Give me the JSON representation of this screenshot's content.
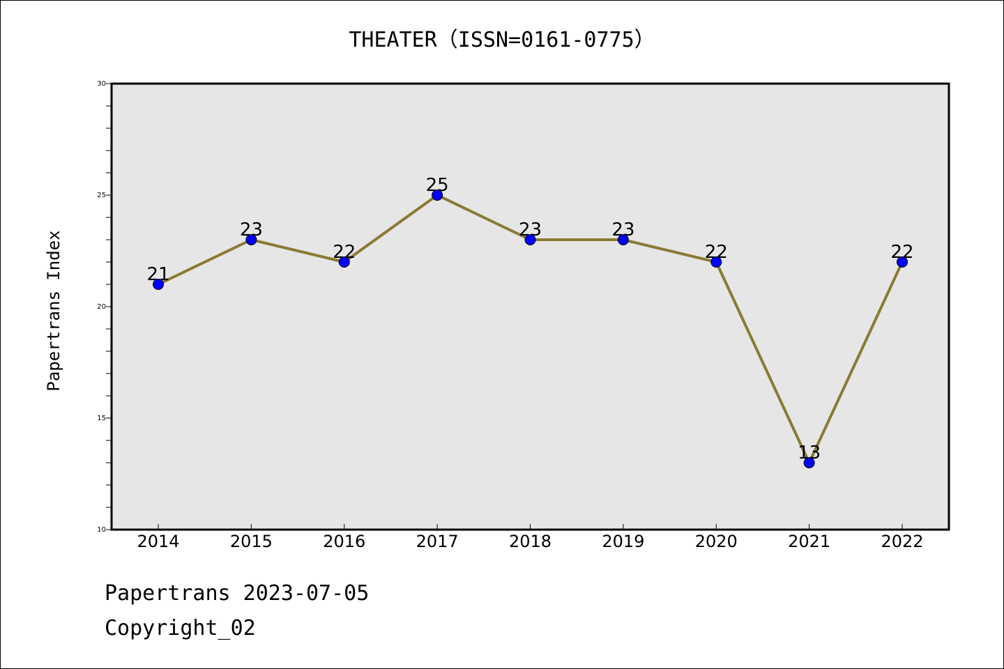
{
  "chart_data": {
    "type": "line",
    "title": "THEATER（ISSN=0161-0775）",
    "xlabel": "",
    "ylabel": "Papertrans Index",
    "categories": [
      "2014",
      "2015",
      "2016",
      "2017",
      "2018",
      "2019",
      "2020",
      "2021",
      "2022"
    ],
    "values": [
      21,
      23,
      22,
      25,
      23,
      23,
      22,
      13,
      22
    ],
    "data_labels": [
      "21",
      "23",
      "22",
      "25",
      "23",
      "23",
      "22",
      "13",
      "22"
    ],
    "ylim": [
      10,
      30
    ],
    "yticks": [
      "10",
      "15",
      "20",
      "25",
      "30"
    ],
    "grid": false,
    "line_color": "#8b7a34",
    "marker_color": "#0000ff",
    "plot_background": "#e6e6e6"
  },
  "footer": {
    "line1": "Papertrans 2023-07-05",
    "line2": "Copyright_02"
  }
}
